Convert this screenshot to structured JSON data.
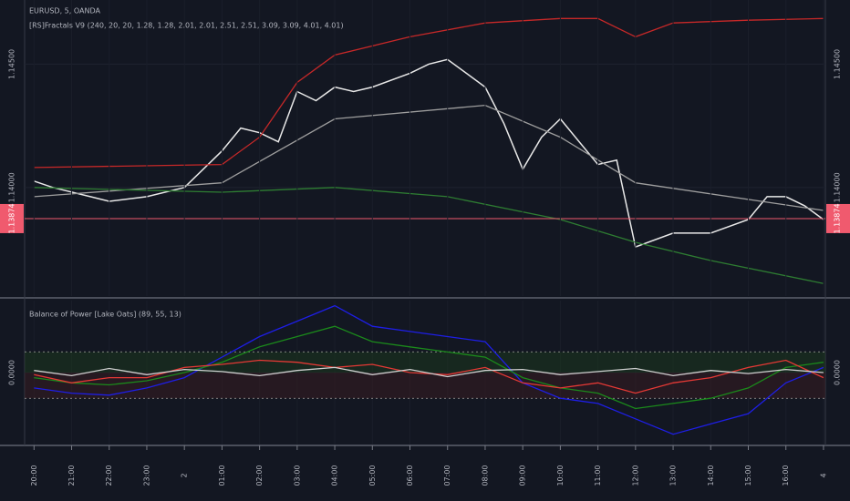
{
  "chart_data": [
    {
      "type": "line",
      "title": "EURUSD, 5, OANDA",
      "subtitle": "[RS]Fractals V9 (240, 20, 20, 1.28, 1.28, 2.01, 2.01, 2.51, 2.51, 3.09, 3.09, 4.01, 4.01)",
      "series": [
        {
          "color": "#e8e8e8",
          "x": [
            0,
            0.5,
            1.5,
            2,
            3,
            4,
            4.5,
            5,
            5.5,
            6,
            6.5,
            7,
            7.5,
            8,
            8.5,
            9,
            10,
            10.5,
            11,
            12,
            12.5,
            13,
            13.5,
            14,
            15,
            15.5,
            16,
            17,
            18,
            19,
            19.5,
            20,
            20.5,
            21
          ],
          "values": [
            1.14026,
            1.14,
            1.13963,
            1.13944,
            1.13963,
            1.14,
            1.14074,
            1.14148,
            1.14241,
            1.14222,
            1.14185,
            1.14389,
            1.14352,
            1.14407,
            1.14389,
            1.14407,
            1.14463,
            1.145,
            1.14519,
            1.14407,
            1.14259,
            1.14074,
            1.14204,
            1.14278,
            1.14093,
            1.14111,
            1.13759,
            1.13815,
            1.13815,
            1.1387,
            1.13963,
            1.13963,
            1.13926,
            1.1387
          ]
        },
        {
          "color": "#c62828",
          "x": [
            0,
            5,
            6,
            7,
            8,
            10,
            12,
            14,
            15,
            16,
            17,
            19,
            21
          ],
          "values": [
            1.14081,
            1.14093,
            1.14204,
            1.14426,
            1.14537,
            1.14611,
            1.14667,
            1.14685,
            1.14685,
            1.14611,
            1.14667,
            1.14678,
            1.14685
          ]
        },
        {
          "color": "#9e9e9e",
          "x": [
            0,
            5,
            8,
            12,
            14,
            16,
            21
          ],
          "values": [
            1.13963,
            1.14019,
            1.14278,
            1.14333,
            1.14204,
            1.14019,
            1.13907
          ]
        },
        {
          "color": "#2e7d32",
          "x": [
            0,
            5,
            8,
            11,
            14,
            16,
            18,
            21
          ],
          "values": [
            1.14,
            1.13981,
            1.14,
            1.13963,
            1.1387,
            1.13778,
            1.13704,
            1.13611
          ]
        }
      ],
      "xlim": [
        -0.25,
        21.05
      ],
      "xticks": [
        {
          "value": 0,
          "label": "20:00"
        },
        {
          "value": 1,
          "label": "21:00"
        },
        {
          "value": 2,
          "label": "22:00"
        },
        {
          "value": 3,
          "label": "23:00"
        },
        {
          "value": 4,
          "label": "2"
        },
        {
          "value": 5,
          "label": "01:00"
        },
        {
          "value": 6,
          "label": "02:00"
        },
        {
          "value": 7,
          "label": "03:00"
        },
        {
          "value": 8,
          "label": "04:00"
        },
        {
          "value": 9,
          "label": "05:00"
        },
        {
          "value": 10,
          "label": "06:00"
        },
        {
          "value": 11,
          "label": "07:00"
        },
        {
          "value": 12,
          "label": "08:00"
        },
        {
          "value": 13,
          "label": "09:00"
        },
        {
          "value": 14,
          "label": "10:00"
        },
        {
          "value": 15,
          "label": "11:00"
        },
        {
          "value": 16,
          "label": "12:00"
        },
        {
          "value": 17,
          "label": "13:00"
        },
        {
          "value": 18,
          "label": "14:00"
        },
        {
          "value": 19,
          "label": "15:00"
        },
        {
          "value": 20,
          "label": "16:00"
        },
        {
          "value": 21,
          "label": "4"
        }
      ],
      "ylim": [
        1.1356,
        1.1476
      ],
      "yticks": [
        {
          "value": 1.145,
          "label": "1.14500"
        },
        {
          "value": 1.14,
          "label": "1.14000"
        }
      ],
      "last_price": {
        "value": 1.13874,
        "label": "1.13874"
      }
    },
    {
      "type": "line",
      "title": "Balance of Power [Lake Oats] (89, 55, 13)",
      "series": [
        {
          "color": "#1e1ee6",
          "x": [
            0,
            1,
            2,
            3,
            4,
            5,
            6,
            7,
            8,
            9,
            10,
            11,
            12,
            13,
            14,
            15,
            16,
            17,
            18,
            19,
            20,
            21
          ],
          "values": [
            -0.15,
            -0.2,
            -0.22,
            -0.15,
            -0.05,
            0.15,
            0.35,
            0.5,
            0.65,
            0.45,
            0.4,
            0.35,
            0.3,
            -0.1,
            -0.25,
            -0.3,
            -0.45,
            -0.6,
            -0.5,
            -0.4,
            -0.1,
            0.05
          ]
        },
        {
          "color": "#1b8a1b",
          "x": [
            0,
            1,
            2,
            3,
            4,
            5,
            6,
            7,
            8,
            9,
            10,
            11,
            12,
            13,
            14,
            15,
            16,
            17,
            18,
            19,
            20,
            21
          ],
          "values": [
            -0.05,
            -0.1,
            -0.12,
            -0.08,
            0,
            0.1,
            0.25,
            0.35,
            0.45,
            0.3,
            0.25,
            0.2,
            0.15,
            -0.05,
            -0.15,
            -0.2,
            -0.35,
            -0.3,
            -0.25,
            -0.15,
            0.05,
            0.1
          ]
        },
        {
          "color": "#e53935",
          "x": [
            0,
            1,
            2,
            3,
            4,
            5,
            6,
            7,
            8,
            9,
            10,
            11,
            12,
            13,
            14,
            15,
            16,
            17,
            18,
            19,
            20,
            21
          ],
          "values": [
            -0.02,
            -0.1,
            -0.05,
            -0.05,
            0.05,
            0.08,
            0.12,
            0.1,
            0.05,
            0.08,
            0,
            -0.02,
            0.05,
            -0.1,
            -0.15,
            -0.1,
            -0.2,
            -0.1,
            -0.05,
            0.05,
            0.12,
            -0.05
          ]
        },
        {
          "color": "#d0d0d0",
          "x": [
            0,
            1,
            2,
            3,
            4,
            5,
            6,
            7,
            8,
            9,
            10,
            11,
            12,
            13,
            14,
            15,
            16,
            17,
            18,
            19,
            20,
            21
          ],
          "values": [
            0.02,
            -0.03,
            0.04,
            -0.02,
            0.03,
            0.01,
            -0.03,
            0.02,
            0.05,
            -0.02,
            0.03,
            -0.04,
            0.02,
            0.03,
            -0.02,
            0.01,
            0.04,
            -0.03,
            0.02,
            -0.01,
            0.03,
            0
          ]
        }
      ],
      "xlim": [
        -0.25,
        21.05
      ],
      "ylim": [
        -0.7,
        0.7
      ],
      "yticks": [
        {
          "value": 0,
          "label": "0.0000"
        }
      ],
      "levels": [
        0.2,
        -0.25
      ]
    }
  ]
}
